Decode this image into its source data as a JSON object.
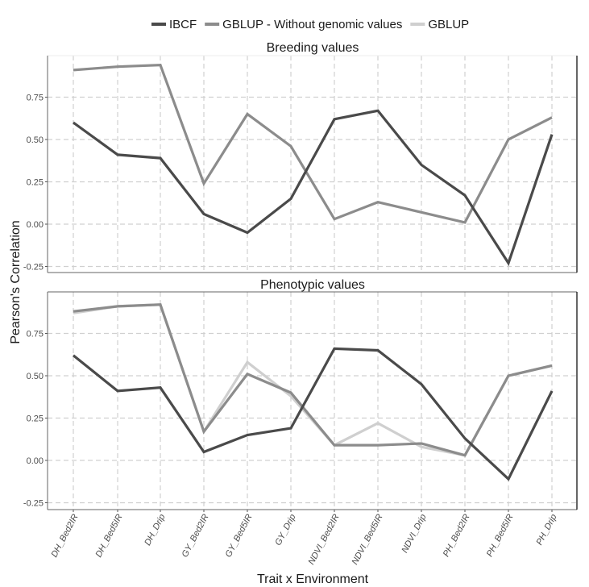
{
  "chart_data": {
    "type": "line",
    "title": "",
    "xlabel": "Trait x Environment",
    "ylabel": "Pearson's Correlation",
    "legend": {
      "position": "top",
      "entries": [
        {
          "name": "IBCF",
          "color": "#4a4a4a"
        },
        {
          "name": "GBLUP - Without genomic values",
          "color": "#8c8c8c"
        },
        {
          "name": "GBLUP",
          "color": "#cfcfcf"
        }
      ]
    },
    "categories": [
      "DH_Bed2IR",
      "DH_Bed5IR",
      "DH_Drip",
      "GY_Bed2IR",
      "GY_Bed5IR",
      "GY_Drip",
      "NDVI_Bed2IR",
      "NDVI_Bed5IR",
      "NDVI_Drip",
      "PH_Bed2IR",
      "PH_Bed5IR",
      "PH_Drip"
    ],
    "yticks": [
      "-0.25",
      "0.00",
      "0.25",
      "0.50",
      "0.75"
    ],
    "ylim": [
      -0.29,
      0.98
    ],
    "grid": true,
    "panels": [
      {
        "title": "Breeding values",
        "series": [
          {
            "name": "IBCF",
            "values": [
              0.6,
              0.41,
              0.39,
              0.06,
              -0.05,
              0.15,
              0.62,
              0.67,
              0.35,
              0.17,
              -0.23,
              0.53
            ]
          },
          {
            "name": "GBLUP - Without genomic values",
            "values": [
              0.91,
              0.93,
              0.94,
              0.24,
              0.65,
              0.46,
              0.03,
              0.13,
              0.07,
              0.01,
              0.5,
              0.63
            ]
          }
        ]
      },
      {
        "title": "Phenotypic values",
        "series": [
          {
            "name": "IBCF",
            "values": [
              0.62,
              0.41,
              0.43,
              0.05,
              0.15,
              0.19,
              0.66,
              0.65,
              0.45,
              0.13,
              -0.11,
              0.41
            ]
          },
          {
            "name": "GBLUP - Without genomic values",
            "values": [
              0.88,
              0.91,
              0.92,
              0.17,
              0.51,
              0.4,
              0.09,
              0.09,
              0.1,
              0.03,
              0.5,
              0.56
            ]
          },
          {
            "name": "GBLUP",
            "values": [
              0.87,
              0.91,
              0.92,
              0.17,
              0.58,
              0.38,
              0.09,
              0.22,
              0.08,
              0.03,
              0.5,
              0.56
            ]
          }
        ]
      }
    ]
  }
}
